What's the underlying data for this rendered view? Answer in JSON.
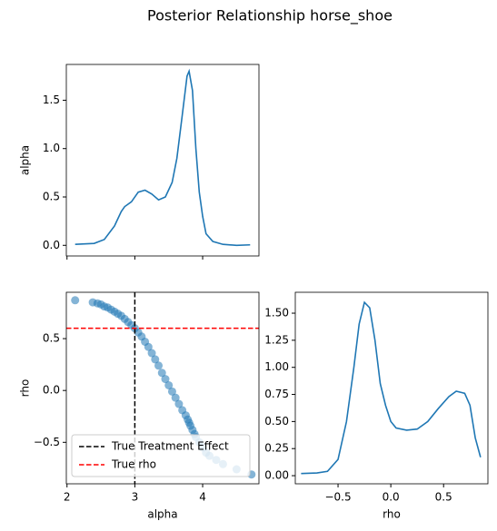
{
  "title": "Posterior Relationship horse_shoe",
  "chart_data": [
    {
      "type": "line",
      "ylabel": "alpha",
      "color": "#1f77b4",
      "x": [
        2.12,
        2.4,
        2.55,
        2.7,
        2.8,
        2.85,
        2.95,
        3.05,
        3.15,
        3.25,
        3.35,
        3.45,
        3.55,
        3.62,
        3.7,
        3.77,
        3.8,
        3.85,
        3.9,
        3.95,
        4.0,
        4.05,
        4.15,
        4.3,
        4.5,
        4.7
      ],
      "values": [
        0.01,
        0.02,
        0.06,
        0.2,
        0.35,
        0.4,
        0.45,
        0.55,
        0.57,
        0.53,
        0.47,
        0.5,
        0.65,
        0.9,
        1.35,
        1.75,
        1.8,
        1.6,
        1.0,
        0.55,
        0.3,
        0.12,
        0.04,
        0.01,
        0.0,
        0.005
      ],
      "xlim": [
        1.99,
        4.83
      ],
      "xticks": [
        2,
        3,
        4
      ],
      "xticklabels": false,
      "ylim": [
        -0.11,
        1.87
      ],
      "yticks": [
        {
          "value": 0,
          "label": "0.0"
        },
        0.5,
        {
          "value": 1,
          "label": "1.0"
        },
        1.5
      ]
    },
    {
      "type": "scatter",
      "xlabel": "alpha",
      "ylabel": "rho",
      "color": "#1f77b4",
      "x": [
        2.12,
        2.38,
        2.45,
        2.5,
        2.55,
        2.6,
        2.65,
        2.7,
        2.75,
        2.8,
        2.85,
        2.9,
        2.95,
        3.0,
        3.05,
        3.1,
        3.15,
        3.2,
        3.25,
        3.3,
        3.35,
        3.4,
        3.45,
        3.5,
        3.55,
        3.6,
        3.65,
        3.7,
        3.75,
        3.78,
        3.8,
        3.82,
        3.85,
        3.88,
        3.9,
        3.95,
        4.0,
        4.05,
        4.1,
        4.2,
        4.3,
        4.5,
        4.72
      ],
      "y": [
        0.87,
        0.85,
        0.84,
        0.83,
        0.81,
        0.8,
        0.78,
        0.76,
        0.74,
        0.72,
        0.69,
        0.66,
        0.63,
        0.6,
        0.56,
        0.52,
        0.47,
        0.42,
        0.36,
        0.3,
        0.24,
        0.17,
        0.11,
        0.05,
        -0.01,
        -0.07,
        -0.13,
        -0.19,
        -0.24,
        -0.28,
        -0.31,
        -0.34,
        -0.38,
        -0.42,
        -0.45,
        -0.5,
        -0.55,
        -0.6,
        -0.63,
        -0.67,
        -0.71,
        -0.76,
        -0.81
      ],
      "xlim": [
        1.99,
        4.83
      ],
      "xticks": [
        2,
        3,
        4
      ],
      "ylim": [
        -0.9,
        0.947
      ],
      "yticks": [
        {
          "value": -0.5,
          "label": "−0.5"
        },
        {
          "value": 0,
          "label": "0.0"
        },
        0.5
      ],
      "reference_lines": [
        {
          "name": "True Treatment Effect",
          "color": "black",
          "orientation": "vertical",
          "value": 3
        },
        {
          "name": "True rho",
          "color": "red",
          "orientation": "horizontal",
          "value": 0.6
        }
      ],
      "legend": "lower left"
    },
    {
      "type": "line",
      "xlabel": "rho",
      "color": "#1f77b4",
      "x": [
        -0.85,
        -0.7,
        -0.6,
        -0.5,
        -0.42,
        -0.35,
        -0.3,
        -0.25,
        -0.2,
        -0.15,
        -0.1,
        -0.05,
        0.0,
        0.05,
        0.15,
        0.25,
        0.35,
        0.45,
        0.55,
        0.62,
        0.7,
        0.75,
        0.8,
        0.85
      ],
      "values": [
        0.02,
        0.025,
        0.04,
        0.15,
        0.5,
        1.0,
        1.4,
        1.6,
        1.55,
        1.25,
        0.85,
        0.65,
        0.5,
        0.44,
        0.42,
        0.43,
        0.5,
        0.62,
        0.73,
        0.78,
        0.76,
        0.65,
        0.35,
        0.17
      ],
      "xlim": [
        -0.905,
        0.92
      ],
      "xticks": [
        {
          "value": -0.5,
          "label": "−0.5"
        },
        {
          "value": 0,
          "label": "0.0"
        },
        0.5
      ],
      "ylim": [
        -0.075,
        1.693
      ],
      "yticks": [
        {
          "value": 0,
          "label": "0.00"
        },
        {
          "value": 0.25,
          "label": "0.25"
        },
        {
          "value": 0.5,
          "label": "0.50"
        },
        {
          "value": 0.75,
          "label": "0.75"
        },
        {
          "value": 1,
          "label": "1.00"
        },
        {
          "value": 1.25,
          "label": "1.25"
        },
        {
          "value": 1.5,
          "label": "1.50"
        }
      ]
    }
  ]
}
